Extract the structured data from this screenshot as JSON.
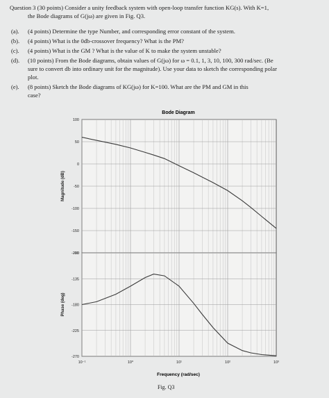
{
  "question": {
    "line1": "Question 3 (30 points) Consider a unity feedback system with open-loop transfer function KG(s). With K=1,",
    "line2": "the Bode diagrams of G(jω) are given in Fig. Q3.",
    "parts": [
      {
        "label": "(a).",
        "lines": [
          "(4 points) Determine the type Number, and corresponding error constant of the system."
        ]
      },
      {
        "label": "(b).",
        "lines": [
          "(4 points) What is the 0db-crossover frequency? What is the PM?"
        ]
      },
      {
        "label": "(c).",
        "lines": [
          "(4 points) What is the GM ? What is the value of K to make the system unstable?"
        ]
      },
      {
        "label": "(d).",
        "lines": [
          "(10 points) From the Bode diagrams, obtain values of G(jω) for ω = 0.1, 1, 3, 10, 100, 300 rad/sec. (Be",
          "sure to convert db into ordinary unit for the magnitude). Use your data to sketch the corresponding polar",
          "plot."
        ]
      },
      {
        "label": "(e).",
        "lines": [
          "(8 points) Sketch the Bode diagrams of KG(jω) for K=100. What are the PM and GM in this",
          "case?"
        ]
      }
    ]
  },
  "figure_caption": "Fig. Q3",
  "chart_data": {
    "type": "line",
    "title": "Bode Diagram",
    "xlabel": "Frequency (rad/sec)",
    "xscale": "log",
    "xlim": [
      0.1,
      1000
    ],
    "xticks": [
      "10⁻¹",
      "10⁰",
      "10¹",
      "10²",
      "10³"
    ],
    "grid": true,
    "panels": [
      {
        "name": "magnitude",
        "ylabel": "Magnitude (dB)",
        "ylim": [
          -200,
          100
        ],
        "yticks": [
          100,
          50,
          0,
          -50,
          -100,
          -150,
          -200
        ],
        "series": [
          {
            "x": [
              0.1,
              0.2,
              0.5,
              1,
              2,
              3,
              5,
              10,
              20,
              50,
              100,
              200,
              300,
              500,
              1000
            ],
            "y": [
              60,
              53,
              44,
              36,
              26,
              20,
              12,
              -4,
              -20,
              -42,
              -60,
              -83,
              -98,
              -118,
              -145
            ]
          }
        ]
      },
      {
        "name": "phase",
        "ylabel": "Phase (deg)",
        "ylim": [
          -270,
          -90
        ],
        "yticks": [
          -90,
          -135,
          -180,
          -225,
          -270
        ],
        "series": [
          {
            "x": [
              0.1,
              0.2,
              0.5,
              1,
              2,
              3,
              5,
              10,
              20,
              30,
              50,
              100,
              200,
              300,
              500,
              1000
            ],
            "y": [
              -180,
              -175,
              -162,
              -148,
              -133,
              -127,
              -130,
              -148,
              -178,
              -197,
              -220,
              -247,
              -260,
              -264,
              -267,
              -269
            ]
          }
        ]
      }
    ]
  }
}
